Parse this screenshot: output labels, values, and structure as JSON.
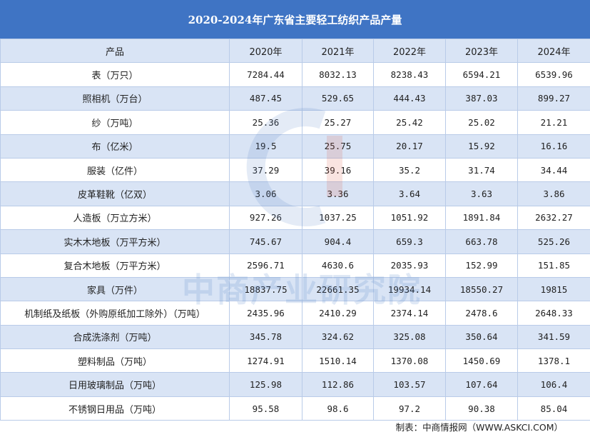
{
  "title": "2020-2024年广东省主要轻工纺织产品产量",
  "header": [
    "产品",
    "2020年",
    "2021年",
    "2022年",
    "2023年",
    "2024年"
  ],
  "rows": [
    [
      "表（万只）",
      "7284.44",
      "8032.13",
      "8238.43",
      "6594.21",
      "6539.96"
    ],
    [
      "照相机（万台）",
      "487.45",
      "529.65",
      "444.43",
      "387.03",
      "899.27"
    ],
    [
      "纱（万吨）",
      "25.36",
      "25.27",
      "25.42",
      "25.02",
      "21.21"
    ],
    [
      "布（亿米）",
      "19.5",
      "25.75",
      "20.17",
      "15.92",
      "16.16"
    ],
    [
      "服装（亿件）",
      "37.29",
      "39.16",
      "35.2",
      "31.74",
      "34.44"
    ],
    [
      "皮革鞋靴（亿双）",
      "3.06",
      "3.36",
      "3.64",
      "3.63",
      "3.86"
    ],
    [
      "人造板（万立方米）",
      "927.26",
      "1037.25",
      "1051.92",
      "1891.84",
      "2632.27"
    ],
    [
      "实木木地板（万平方米）",
      "745.67",
      "904.4",
      "659.3",
      "663.78",
      "525.26"
    ],
    [
      "复合木地板（万平方米）",
      "2596.71",
      "4630.6",
      "2035.93",
      "152.99",
      "151.85"
    ],
    [
      "家具（万件）",
      "18837.75",
      "22661.35",
      "19934.14",
      "18550.27",
      "19815"
    ],
    [
      "机制纸及纸板（外购原纸加工除外）（万吨）",
      "2435.96",
      "2410.29",
      "2374.14",
      "2478.6",
      "2648.33"
    ],
    [
      "合成洗涤剂（万吨）",
      "345.78",
      "324.62",
      "325.08",
      "350.64",
      "341.59"
    ],
    [
      "塑料制品（万吨）",
      "1274.91",
      "1510.14",
      "1370.08",
      "1450.69",
      "1378.1"
    ],
    [
      "日用玻璃制品（万吨）",
      "125.98",
      "112.86",
      "103.57",
      "107.64",
      "106.4"
    ],
    [
      "不锈钢日用品（万吨）",
      "95.58",
      "98.6",
      "97.2",
      "90.38",
      "85.04"
    ]
  ],
  "source": "制表：中商情报网（WWW.ASKCI.COM）",
  "watermark": "中商产业研究院",
  "colors": {
    "title_bg": "#3f74c4",
    "stripe": "#d9e4f5",
    "border": "#b9cbe8"
  }
}
